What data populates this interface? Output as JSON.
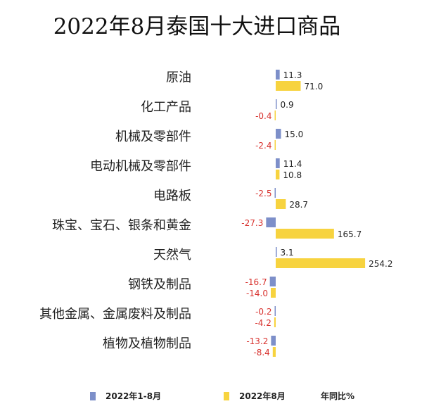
{
  "title": "2022年8月泰国十大进口商品",
  "legend": {
    "series_a": "2022年1-8月",
    "series_b": "2022年8月",
    "unit": "年同比%"
  },
  "colors": {
    "series_a": "#7d8fc9",
    "series_b": "#f7d33f",
    "negative_label": "#d8322e",
    "positive_label": "#222222"
  },
  "chart_data": {
    "type": "bar",
    "orientation": "horizontal",
    "categories": [
      "原油",
      "化工产品",
      "机械及零部件",
      "电动机械及零部件",
      "电路板",
      "珠宝、宝石、银条和黄金",
      "天然气",
      "钢铁及制品",
      "其他金属、金属废料及制品",
      "植物及植物制品"
    ],
    "series": [
      {
        "name": "2022年1-8月",
        "values": [
          11.3,
          0.9,
          15.0,
          11.4,
          -2.5,
          -27.3,
          3.1,
          -16.7,
          -0.2,
          -13.2
        ]
      },
      {
        "name": "2022年8月",
        "values": [
          71.0,
          -0.4,
          -2.4,
          10.8,
          28.7,
          165.7,
          254.2,
          -14.0,
          -4.2,
          -8.4
        ]
      }
    ],
    "value_labels": [
      [
        "11.3",
        "0.9",
        "15.0",
        "11.4",
        "-2.5",
        "-27.3",
        "3.1",
        "-16.7",
        "-0.2",
        "-13.2"
      ],
      [
        "71.0",
        "-0.4",
        "-2.4",
        "10.8",
        "28.7",
        "165.7",
        "254.2",
        "-14.0",
        "-4.2",
        "-8.4"
      ]
    ],
    "unit": "年同比%"
  }
}
